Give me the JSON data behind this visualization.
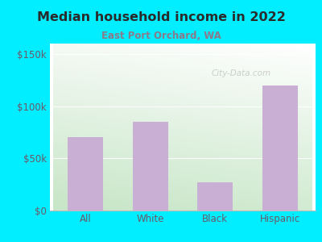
{
  "title": "Median household income in 2022",
  "subtitle": "East Port Orchard, WA",
  "categories": [
    "All",
    "White",
    "Black",
    "Hispanic"
  ],
  "values": [
    70000,
    85000,
    27000,
    120000
  ],
  "bar_color": "#c9afd4",
  "background_outer": "#00eeff",
  "title_color": "#2a2a2a",
  "subtitle_color": "#8a7a8a",
  "tick_label_color": "#6a5a6a",
  "yticks": [
    0,
    50000,
    100000,
    150000
  ],
  "ytick_labels": [
    "$0",
    "$50k",
    "$100k",
    "$150k"
  ],
  "ylim": [
    0,
    160000
  ],
  "watermark": "City-Data.com",
  "gradient_top_left": "#c8e6c8",
  "gradient_top_right": "#f0faf0",
  "gradient_bottom_left": "#b8ddb8",
  "gradient_bottom_right": "#e8f5e8"
}
